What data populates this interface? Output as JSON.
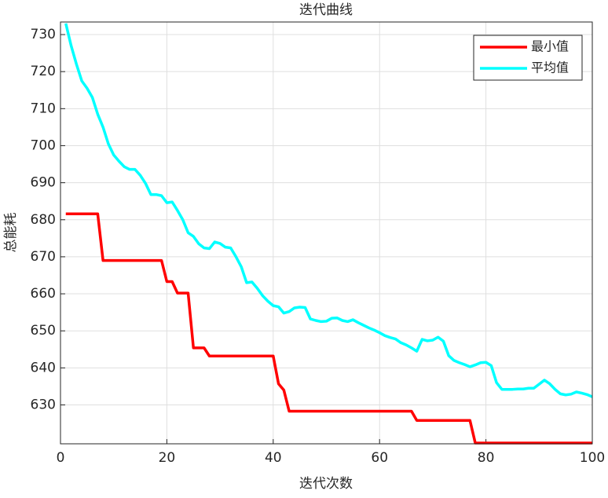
{
  "chart_data": {
    "type": "line",
    "title": "迭代曲线",
    "x_label": "迭代次数",
    "y_label": "总能耗",
    "x": [
      1,
      2,
      3,
      4,
      5,
      6,
      7,
      8,
      9,
      10,
      11,
      12,
      13,
      14,
      15,
      16,
      17,
      18,
      19,
      20,
      21,
      22,
      23,
      24,
      25,
      26,
      27,
      28,
      29,
      30,
      31,
      32,
      33,
      34,
      35,
      36,
      37,
      38,
      39,
      40,
      41,
      42,
      43,
      44,
      45,
      46,
      47,
      48,
      49,
      50,
      51,
      52,
      53,
      54,
      55,
      56,
      57,
      58,
      59,
      60,
      61,
      62,
      63,
      64,
      65,
      66,
      67,
      68,
      69,
      70,
      71,
      72,
      73,
      74,
      75,
      76,
      77,
      78,
      79,
      80,
      81,
      82,
      83,
      84,
      85,
      86,
      87,
      88,
      89,
      90,
      91,
      92,
      93,
      94,
      95,
      96,
      97,
      98,
      99,
      100
    ],
    "series": [
      {
        "name": "最小值",
        "color": "#ff0000",
        "values": [
          681.6,
          681.6,
          681.6,
          681.6,
          681.6,
          681.6,
          681.6,
          669,
          669,
          669,
          669,
          669,
          669,
          669,
          669,
          669,
          669,
          669,
          669,
          663.3,
          663.3,
          660.2,
          660.2,
          660.2,
          645.4,
          645.4,
          645.4,
          643.2,
          643.2,
          643.2,
          643.2,
          643.2,
          643.2,
          643.2,
          643.2,
          643.2,
          643.2,
          643.2,
          643.2,
          643.2,
          635.7,
          634,
          628.3,
          628.3,
          628.3,
          628.3,
          628.3,
          628.3,
          628.3,
          628.3,
          628.3,
          628.3,
          628.3,
          628.3,
          628.3,
          628.3,
          628.3,
          628.3,
          628.3,
          628.3,
          628.3,
          628.3,
          628.3,
          628.3,
          628.3,
          628.3,
          625.8,
          625.8,
          625.8,
          625.8,
          625.8,
          625.8,
          625.8,
          625.8,
          625.8,
          625.8,
          625.8,
          619.7,
          619.7,
          619.7,
          619.7,
          619.7,
          619.7,
          619.7,
          619.7,
          619.7,
          619.7,
          619.7,
          619.7,
          619.7,
          619.7,
          619.7,
          619.7,
          619.7,
          619.7,
          619.7,
          619.7,
          619.7,
          619.7,
          619.7
        ]
      },
      {
        "name": "平均值",
        "color": "#00ffff",
        "values": [
          733,
          727,
          722,
          717.5,
          715.5,
          713,
          708.5,
          705,
          700.5,
          697.5,
          695.8,
          694.3,
          693.6,
          693.6,
          692,
          689.8,
          686.8,
          686.8,
          686.5,
          684.6,
          684.8,
          682.5,
          680,
          676.5,
          675.5,
          673.5,
          672.4,
          672.2,
          674,
          673.6,
          672.6,
          672.4,
          670,
          667.3,
          663,
          663.2,
          661.5,
          659.5,
          658,
          656.8,
          656.5,
          654.8,
          655.2,
          656.2,
          656.4,
          656.3,
          653.2,
          652.8,
          652.5,
          652.6,
          653.4,
          653.5,
          652.8,
          652.5,
          653,
          652.2,
          651.5,
          650.8,
          650.2,
          649.5,
          648.7,
          648.2,
          647.8,
          646.8,
          646.2,
          645.4,
          644.5,
          647.7,
          647.3,
          647.5,
          648.3,
          647.2,
          643.3,
          642,
          641.4,
          640.9,
          640.3,
          640.8,
          641.4,
          641.5,
          640.6,
          636,
          634.2,
          634.2,
          634.2,
          634.3,
          634.3,
          634.5,
          634.5,
          635.6,
          636.7,
          635.7,
          634.2,
          633,
          632.7,
          632.9,
          633.5,
          633.2,
          632.8,
          632.2
        ]
      }
    ],
    "xlim": [
      0,
      100
    ],
    "xticks": [
      0,
      20,
      40,
      60,
      80,
      100
    ],
    "ylim": [
      619.5,
      733.4
    ],
    "yticks": [
      630,
      640,
      650,
      660,
      670,
      680,
      690,
      700,
      710,
      720,
      730
    ],
    "grid": true,
    "legend": "top-right"
  }
}
